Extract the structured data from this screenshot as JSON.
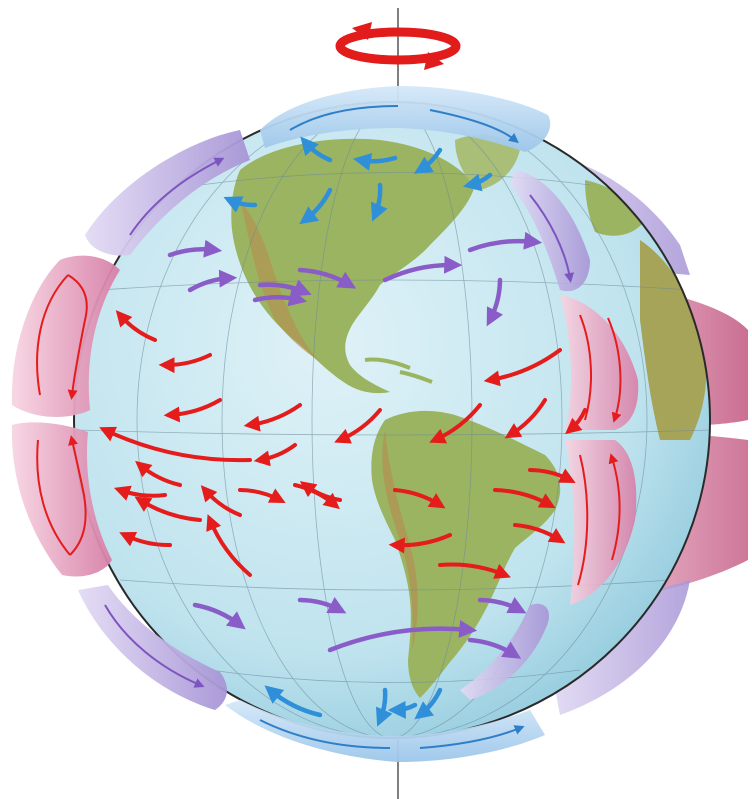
{
  "diagram": {
    "subject": "global-atmospheric-circulation-cells",
    "colors": {
      "polar": "#2f8fd8",
      "ferrel": "#8a5cc8",
      "hadley": "#e51c1c",
      "rotation": "#e21b1b",
      "ocean": "#bfe3ee",
      "land": "#9bb461",
      "polar_cell_fill": "#b8d6f0",
      "ferrel_cell_fill": "#cfc3ea",
      "hadley_cell_fill": "#f2bfd3"
    },
    "icons": [
      "rotation-arrow-icon"
    ],
    "wind_bands": [
      {
        "name": "polar-easterlies-north",
        "color": "polar",
        "count": 7
      },
      {
        "name": "westerlies-north",
        "color": "ferrel",
        "count": 8
      },
      {
        "name": "trade-winds-northeast",
        "color": "hadley",
        "count": 12
      },
      {
        "name": "trade-winds-southeast",
        "color": "hadley",
        "count": 14
      },
      {
        "name": "westerlies-south",
        "color": "ferrel",
        "count": 5
      },
      {
        "name": "polar-easterlies-south",
        "color": "polar",
        "count": 4
      }
    ]
  }
}
